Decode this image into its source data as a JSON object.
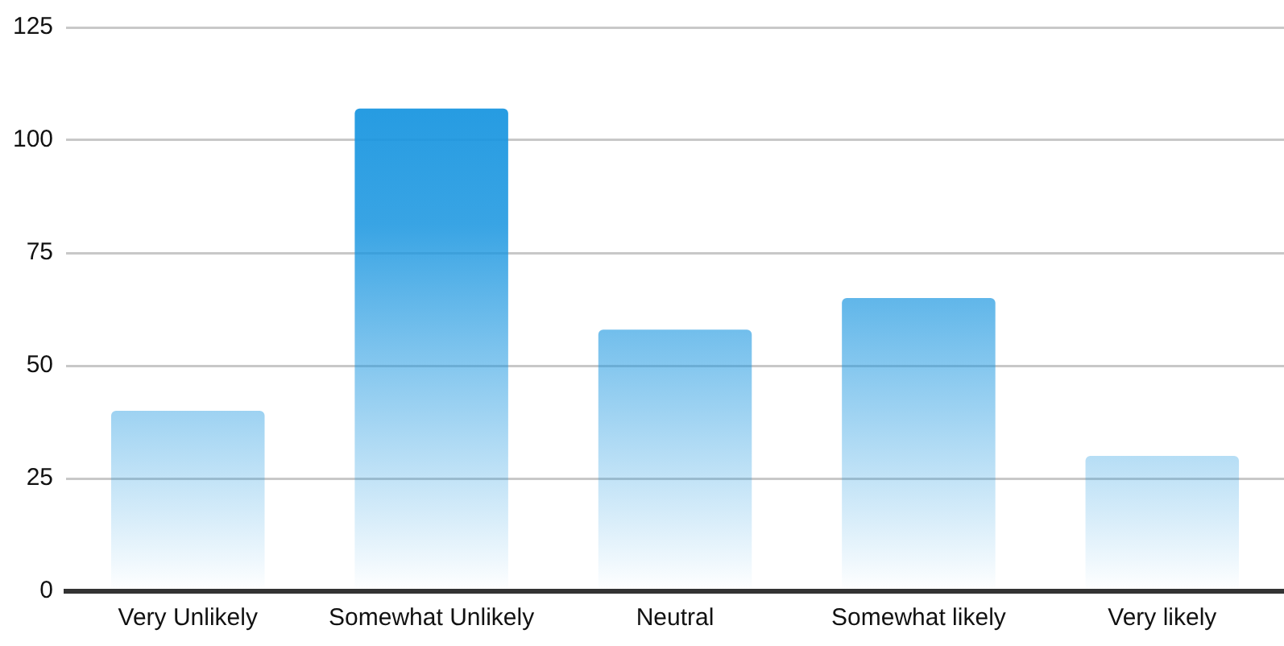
{
  "chart_data": {
    "type": "bar",
    "categories": [
      "Very Unlikely",
      "Somewhat Unlikely",
      "Neutral",
      "Somewhat likely",
      "Very likely"
    ],
    "values": [
      40,
      107,
      58,
      65,
      30
    ],
    "color": "#1a96e0",
    "ylim": [
      0,
      125
    ],
    "yticks": [
      0,
      25,
      50,
      75,
      100,
      125
    ],
    "grid": "y"
  }
}
